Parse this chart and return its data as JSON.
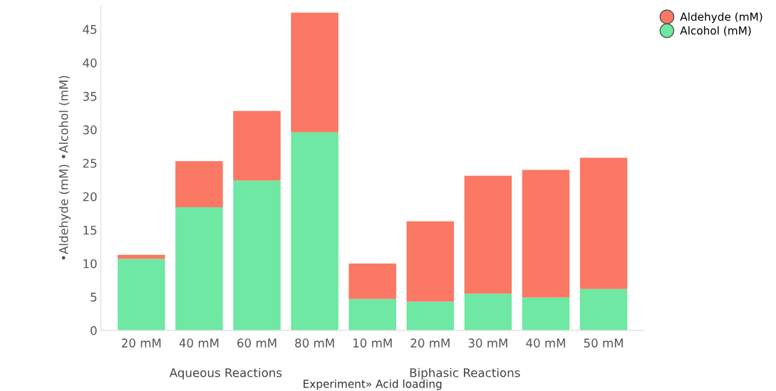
{
  "chart_data": {
    "type": "bar",
    "stacked": true,
    "xlabel": "Experiment» Acid loading",
    "ylabel": "•Aldehyde (mM) •Alcohol (mM)",
    "categories": [
      "20 mM",
      "40 mM",
      "60 mM",
      "80 mM",
      "10 mM",
      "20 mM",
      "30 mM",
      "40 mM",
      "50 mM"
    ],
    "series": [
      {
        "name": "Alcohol (mM)",
        "color": "#6ee8a2",
        "values": [
          10.7,
          18.4,
          22.4,
          29.6,
          4.7,
          4.3,
          5.5,
          4.9,
          6.2
        ]
      },
      {
        "name": "Aldehyde (mM)",
        "color": "#fa7864",
        "values": [
          0.6,
          6.9,
          10.4,
          17.9,
          5.3,
          12.0,
          17.6,
          19.1,
          19.6
        ]
      }
    ],
    "annotations": [
      "Aqueous Reactions",
      "Biphasic Reactions"
    ],
    "ylim": [
      0,
      48.5
    ],
    "yticks": [
      0,
      5,
      10,
      15,
      20,
      25,
      30,
      35,
      40,
      45
    ],
    "grid": false,
    "legend": "top right"
  }
}
